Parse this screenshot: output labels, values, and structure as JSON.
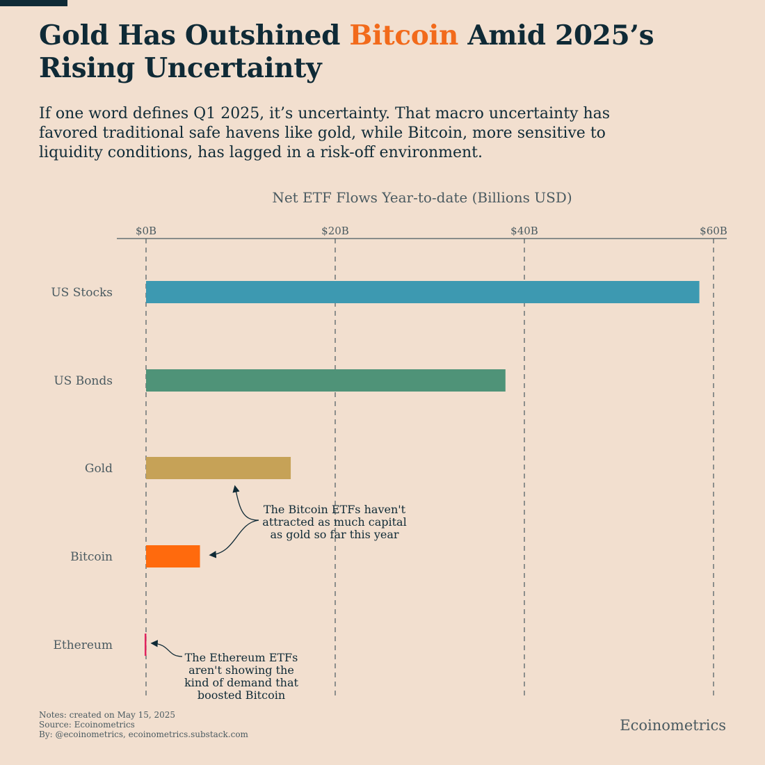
{
  "title": {
    "part1": "Gold Has Outshined ",
    "highlight": "Bitcoin",
    "part2": " Amid 2025’s Rising Uncertainty"
  },
  "subtitle": "If one word defines Q1 2025, it’s uncertainty. That macro uncertainty has favored traditional safe havens like gold, while Bitcoin, more sensitive to liquidity conditions, has lagged in a risk-off environment.",
  "footer": {
    "notes": "Notes: created on May 15, 2025",
    "source": "Source: Ecoinometrics",
    "by": "By: @ecoinometrics, ecoinometrics.substack.com"
  },
  "brand": "Ecoinometrics",
  "annotations": {
    "bitcoin": "The Bitcoin ETFs haven't attracted as much capital as gold so far this year",
    "ethereum": "The Ethereum ETFs aren't showing the kind of demand that boosted Bitcoin"
  },
  "chart_data": {
    "type": "bar",
    "orientation": "horizontal",
    "title": "Net ETF Flows Year-to-date (Billions USD)",
    "categories": [
      "US Stocks",
      "US Bonds",
      "Gold",
      "Bitcoin",
      "Ethereum"
    ],
    "values": [
      58.5,
      38.0,
      15.3,
      5.7,
      -0.15
    ],
    "colors": [
      "#3d99b1",
      "#4f9378",
      "#c6a257",
      "#ff6a0d",
      "#e0245e"
    ],
    "xlim": [
      -3,
      61
    ],
    "xticks": [
      0,
      20,
      40,
      60
    ],
    "xtick_labels": [
      "$0B",
      "$20B",
      "$40B",
      "$60B"
    ],
    "grid": true
  }
}
